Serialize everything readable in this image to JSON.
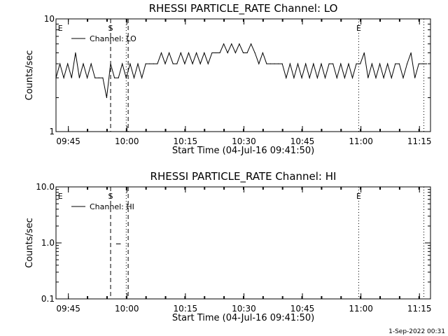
{
  "timestamp": "1-Sep-2022 00:31",
  "chart_data": [
    {
      "type": "line",
      "title": "RHESSI PARTICLE_RATE Channel: LO",
      "xlabel": "Start Time (04-Jul-16 09:41:50)",
      "ylabel": "Counts/sec",
      "yscale": "log",
      "ylim": [
        1,
        10
      ],
      "ytick_labels": [
        {
          "value": 1,
          "label": "1"
        },
        {
          "value": 10,
          "label": "10"
        }
      ],
      "xlim_min": [
        0,
        96
      ],
      "xtick_labels": [
        {
          "minute": 3.17,
          "label": "09:45"
        },
        {
          "minute": 18.17,
          "label": "10:00"
        },
        {
          "minute": 33.17,
          "label": "10:15"
        },
        {
          "minute": 48.17,
          "label": "10:30"
        },
        {
          "minute": 63.17,
          "label": "10:45"
        },
        {
          "minute": 78.17,
          "label": "11:00"
        },
        {
          "minute": 93.17,
          "label": "11:15"
        }
      ],
      "legend": {
        "position": "top-left",
        "entries": [
          "Channel: LO"
        ]
      },
      "markers": [
        {
          "minute": 0.5,
          "label": "E",
          "style": "none"
        },
        {
          "minute": 14.0,
          "label": "S",
          "style": "dashed"
        },
        {
          "minute": 18.0,
          "label": "",
          "style": "dotted"
        },
        {
          "minute": 18.5,
          "label": "",
          "style": "dashed"
        },
        {
          "minute": 77.6,
          "label": "E",
          "style": "dotted"
        },
        {
          "minute": 94.3,
          "label": "",
          "style": "dotted"
        }
      ],
      "series": [
        {
          "name": "Channel: LO",
          "x": [
            0,
            1,
            2,
            3,
            4,
            5,
            6,
            7,
            8,
            9,
            10,
            11,
            12,
            13,
            14,
            15,
            16,
            17,
            18,
            19,
            20,
            21,
            22,
            23,
            24,
            25,
            26,
            27,
            28,
            29,
            30,
            31,
            32,
            33,
            34,
            35,
            36,
            37,
            38,
            39,
            40,
            41,
            42,
            43,
            44,
            45,
            46,
            47,
            48,
            49,
            50,
            51,
            52,
            53,
            54,
            55,
            56,
            57,
            58,
            59,
            60,
            61,
            62,
            63,
            64,
            65,
            66,
            67,
            68,
            69,
            70,
            71,
            72,
            73,
            74,
            75,
            76,
            77,
            78,
            79,
            80,
            81,
            82,
            83,
            84,
            85,
            86,
            87,
            88,
            89,
            90,
            91,
            92,
            93,
            94,
            95
          ],
          "values": [
            3,
            4,
            3,
            4,
            3,
            5,
            3,
            4,
            3,
            4,
            3,
            3,
            3,
            2,
            4,
            3,
            3,
            4,
            3,
            4,
            3,
            4,
            3,
            4,
            4,
            4,
            4,
            5,
            4,
            5,
            4,
            4,
            5,
            4,
            5,
            4,
            5,
            4,
            5,
            4,
            5,
            5,
            5,
            6,
            5,
            6,
            5,
            6,
            5,
            5,
            6,
            5,
            4,
            5,
            4,
            4,
            4,
            4,
            4,
            3,
            4,
            3,
            4,
            3,
            4,
            3,
            4,
            3,
            4,
            3,
            4,
            4,
            3,
            4,
            3,
            4,
            3,
            4,
            4,
            5,
            3,
            4,
            3,
            4,
            3,
            4,
            3,
            4,
            4,
            3,
            4,
            5,
            3,
            4,
            4,
            4
          ]
        }
      ]
    },
    {
      "type": "line",
      "title": "RHESSI PARTICLE_RATE Channel: HI",
      "xlabel": "Start Time (04-Jul-16 09:41:50)",
      "ylabel": "Counts/sec",
      "yscale": "log",
      "ylim": [
        0.1,
        10
      ],
      "ytick_labels": [
        {
          "value": 0.1,
          "label": "0.1"
        },
        {
          "value": 1,
          "label": "1.0"
        },
        {
          "value": 10,
          "label": "10.0"
        }
      ],
      "xlim_min": [
        0,
        96
      ],
      "xtick_labels": [
        {
          "minute": 3.17,
          "label": "09:45"
        },
        {
          "minute": 18.17,
          "label": "10:00"
        },
        {
          "minute": 33.17,
          "label": "10:15"
        },
        {
          "minute": 48.17,
          "label": "10:30"
        },
        {
          "minute": 63.17,
          "label": "10:45"
        },
        {
          "minute": 78.17,
          "label": "11:00"
        },
        {
          "minute": 93.17,
          "label": "11:15"
        }
      ],
      "legend": {
        "position": "top-left",
        "entries": [
          "Channel: HI"
        ]
      },
      "markers": [
        {
          "minute": 0.5,
          "label": "E",
          "style": "none"
        },
        {
          "minute": 14.0,
          "label": "S",
          "style": "dashed"
        },
        {
          "minute": 18.0,
          "label": "",
          "style": "dotted"
        },
        {
          "minute": 18.5,
          "label": "",
          "style": "dashed"
        },
        {
          "minute": 77.6,
          "label": "E",
          "style": "dotted"
        },
        {
          "minute": 94.3,
          "label": "",
          "style": "dotted"
        }
      ],
      "series": [
        {
          "name": "Channel: HI",
          "x": [
            15.5,
            16.5
          ],
          "values": [
            0.96,
            0.96
          ]
        }
      ]
    }
  ]
}
